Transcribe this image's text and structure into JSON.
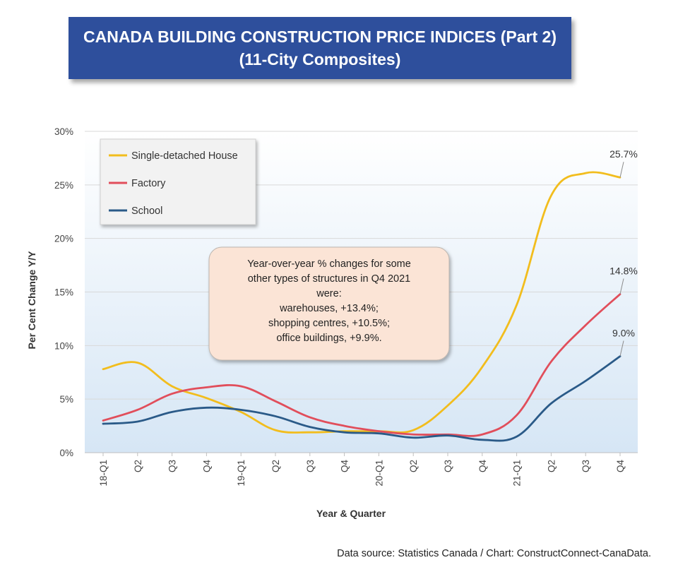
{
  "title": {
    "line1": "CANADA BUILDING CONSTRUCTION PRICE INDICES (Part 2)",
    "line2": "(11-City Composites)"
  },
  "source": "Data source: Statistics Canada / Chart: ConstructConnect-CanaData.",
  "chart_data": {
    "type": "line",
    "xlabel": "Year & Quarter",
    "ylabel": "Per Cent Change Y/Y",
    "categories": [
      "18-Q1",
      "Q2",
      "Q3",
      "Q4",
      "19-Q1",
      "Q2",
      "Q3",
      "Q4",
      "20-Q1",
      "Q2",
      "Q3",
      "Q4",
      "21-Q1",
      "Q2",
      "Q3",
      "Q4"
    ],
    "ylim": [
      0,
      30
    ],
    "yticks": [
      0,
      5,
      10,
      15,
      20,
      25,
      30
    ],
    "ytick_labels": [
      "0%",
      "5%",
      "10%",
      "15%",
      "20%",
      "25%",
      "30%"
    ],
    "grid": "horizontal",
    "legend_position": "top-left",
    "series": [
      {
        "name": "Single-detached House",
        "color": "#f2bd1d",
        "values": [
          7.8,
          8.4,
          6.2,
          5.1,
          3.8,
          2.1,
          1.9,
          2.0,
          2.0,
          2.1,
          4.4,
          8.0,
          13.8,
          24.0,
          26.1,
          25.7
        ],
        "end_label": "25.7%"
      },
      {
        "name": "Factory",
        "color": "#e14e5b",
        "values": [
          3.0,
          4.0,
          5.5,
          6.1,
          6.2,
          4.8,
          3.3,
          2.5,
          2.0,
          1.7,
          1.7,
          1.7,
          3.5,
          8.5,
          11.9,
          14.8
        ],
        "end_label": "14.8%"
      },
      {
        "name": "School",
        "color": "#2a5a88",
        "values": [
          2.7,
          2.9,
          3.8,
          4.2,
          4.0,
          3.4,
          2.4,
          1.9,
          1.8,
          1.4,
          1.6,
          1.2,
          1.5,
          4.6,
          6.7,
          9.0
        ],
        "end_label": "9.0%"
      }
    ],
    "annotation": [
      "Year-over-year % changes for some",
      "other types of structures in Q4 2021",
      "were:",
      "warehouses, +13.4%;",
      "shopping centres, +10.5%;",
      "office buildings, +9.9%."
    ],
    "colors": {
      "plot_bg_top": "#ffffff",
      "plot_bg_bottom": "#d6e6f5",
      "annotation_fill": "#fbe4d6",
      "grid": "#d9d9d9"
    }
  }
}
